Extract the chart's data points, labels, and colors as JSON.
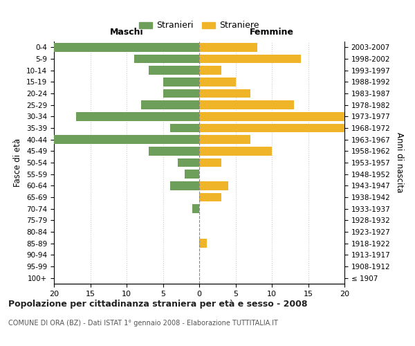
{
  "age_groups": [
    "100+",
    "95-99",
    "90-94",
    "85-89",
    "80-84",
    "75-79",
    "70-74",
    "65-69",
    "60-64",
    "55-59",
    "50-54",
    "45-49",
    "40-44",
    "35-39",
    "30-34",
    "25-29",
    "20-24",
    "15-19",
    "10-14",
    "5-9",
    "0-4"
  ],
  "birth_years": [
    "≤ 1907",
    "1908-1912",
    "1913-1917",
    "1918-1922",
    "1923-1927",
    "1928-1932",
    "1933-1937",
    "1938-1942",
    "1943-1947",
    "1948-1952",
    "1953-1957",
    "1958-1962",
    "1963-1967",
    "1968-1972",
    "1973-1977",
    "1978-1982",
    "1983-1987",
    "1988-1992",
    "1993-1997",
    "1998-2002",
    "2003-2007"
  ],
  "males": [
    0,
    0,
    0,
    0,
    0,
    0,
    1,
    0,
    4,
    2,
    3,
    7,
    20,
    4,
    17,
    8,
    5,
    5,
    7,
    9,
    20
  ],
  "females": [
    0,
    0,
    0,
    1,
    0,
    0,
    0,
    3,
    4,
    0,
    3,
    10,
    7,
    20,
    20,
    13,
    7,
    5,
    3,
    14,
    8
  ],
  "male_color": "#6d9e5a",
  "female_color": "#f0b429",
  "title": "Popolazione per cittadinanza straniera per età e sesso - 2008",
  "subtitle": "COMUNE DI ORA (BZ) - Dati ISTAT 1° gennaio 2008 - Elaborazione TUTTITALIA.IT",
  "xlabel_left": "Maschi",
  "xlabel_right": "Femmine",
  "ylabel_left": "Fasce di età",
  "ylabel_right": "Anni di nascita",
  "legend_male": "Stranieri",
  "legend_female": "Straniere",
  "xlim": 20,
  "background_color": "#ffffff",
  "grid_color": "#cccccc",
  "bar_height": 0.75
}
